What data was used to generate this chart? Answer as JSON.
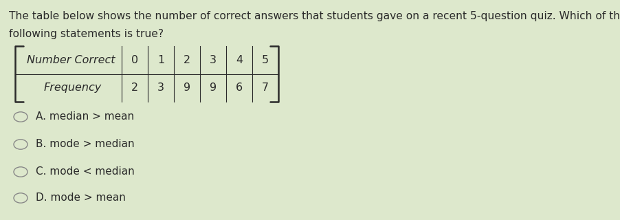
{
  "background_color": "#dde8cc",
  "intro_line1": "The table below shows the number of correct answers that students gave on a recent 5-question quiz. Which of the",
  "intro_line2": "following statements is true?",
  "table_header_label": "Number Correct",
  "table_freq_label": "Frequency",
  "table_numbers": [
    "0",
    "1",
    "2",
    "3",
    "4",
    "5"
  ],
  "table_freqs": [
    "2",
    "3",
    "9",
    "9",
    "6",
    "7"
  ],
  "options": [
    "A. median > mean",
    "B. mode > median",
    "C. mode < median",
    "D. mode > mean"
  ],
  "intro_fontsize": 11.2,
  "table_fontsize": 11.5,
  "option_fontsize": 11.0,
  "text_color": "#2a2a2a",
  "line_color": "#2a2a2a",
  "circle_color": "#888888"
}
